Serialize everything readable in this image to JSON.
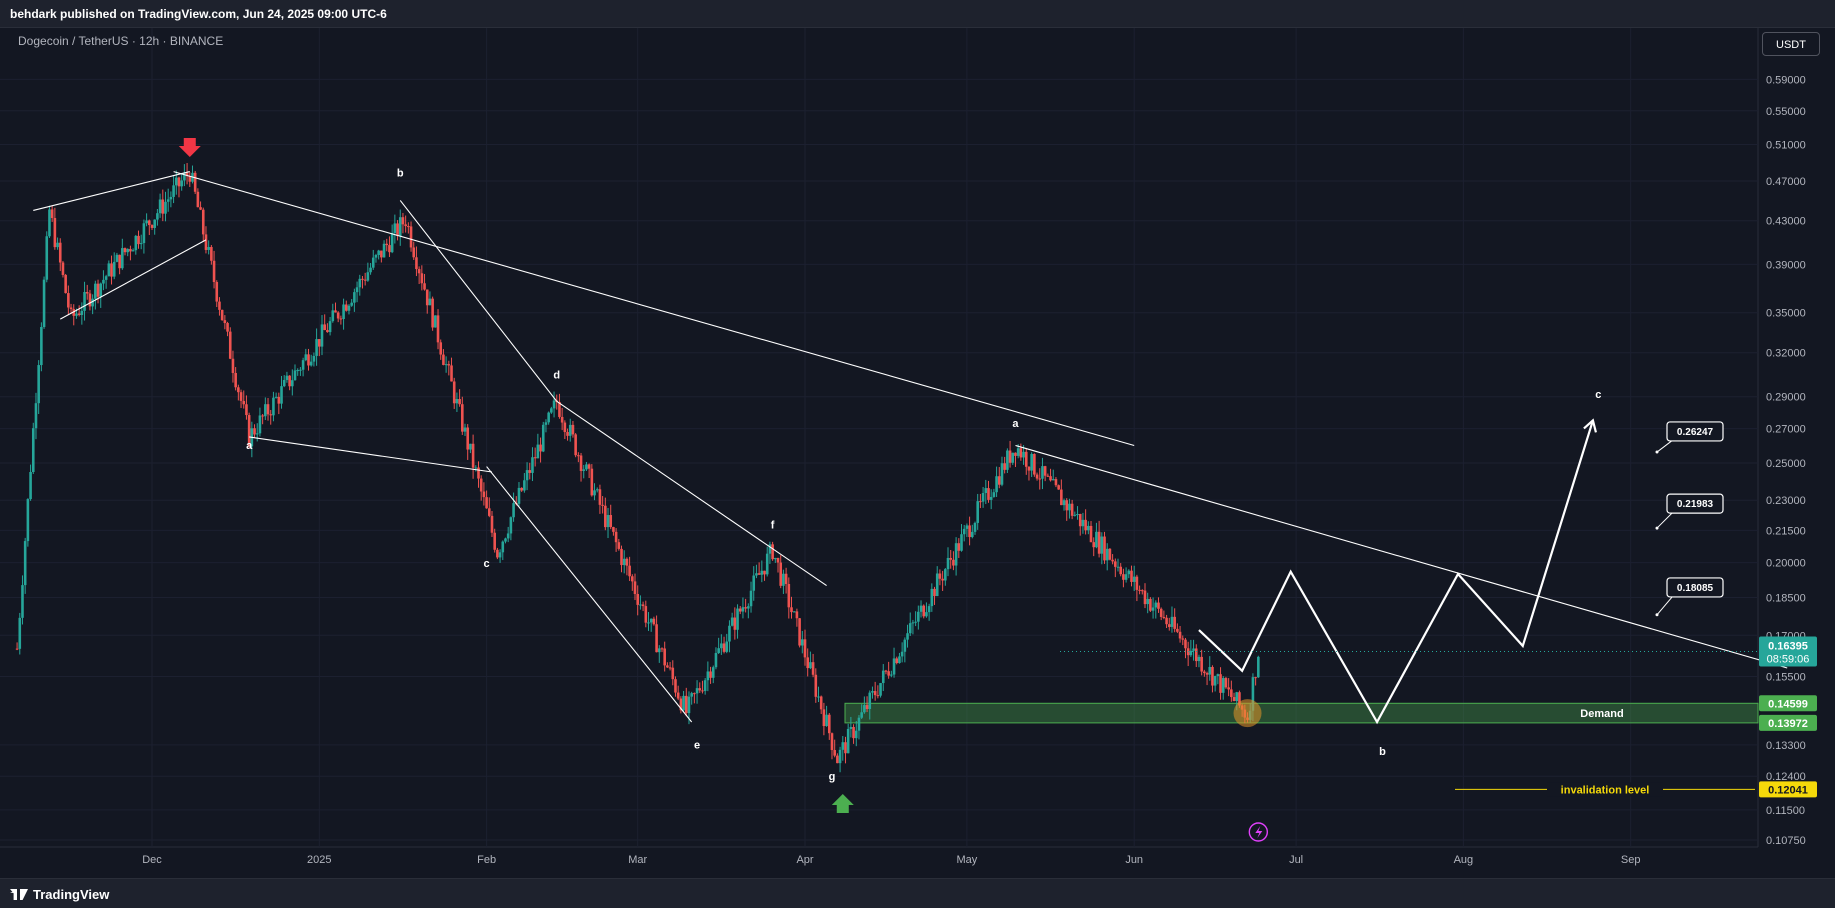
{
  "header": {
    "publisher": "behdark published on TradingView.com, Jun 24, 2025 09:00 UTC-6"
  },
  "symbol_label": "Dogecoin / TetherUS · 12h · BINANCE",
  "currency_button": "USDT",
  "footer": {
    "brand": "TradingView"
  },
  "chart_data": {
    "type": "candlestick",
    "x_labels": [
      "Dec",
      "2025",
      "Feb",
      "Mar",
      "Apr",
      "May",
      "Jun",
      "Jul",
      "Aug",
      "Sep"
    ],
    "y_ticks": [
      "0.59000",
      "0.55000",
      "0.51000",
      "0.47000",
      "0.43000",
      "0.39000",
      "0.35000",
      "0.32000",
      "0.29000",
      "0.27000",
      "0.25000",
      "0.23000",
      "0.21500",
      "0.20000",
      "0.18500",
      "0.17000",
      "0.15500",
      "0.13300",
      "0.12400",
      "0.11500",
      "0.10750"
    ],
    "y_scale": "log",
    "ylim": [
      0.104,
      0.62
    ],
    "price_labels": {
      "current": "0.16395",
      "countdown": "08:59:06",
      "demand_top": "0.14599",
      "demand_bottom": "0.13972",
      "invalidation": "0.12041"
    },
    "targets": [
      "0.26247",
      "0.21983",
      "0.18085"
    ],
    "zone_label": "Demand",
    "invalidation_label": "invalidation level",
    "wave_labels": [
      "a",
      "b",
      "c",
      "d",
      "e",
      "f",
      "g",
      "a",
      "b",
      "c"
    ],
    "colors": {
      "up": "#26a69a",
      "down": "#ef5350",
      "demand": "#4caf50",
      "invalidation": "#f5d90a",
      "background": "#131722"
    },
    "key_prices": [
      {
        "date": "2024-11-12",
        "price": 0.44
      },
      {
        "date": "2024-11-16",
        "price": 0.345
      },
      {
        "date": "2024-12-08",
        "price": 0.48
      },
      {
        "date": "2024-12-19",
        "price": 0.265
      },
      {
        "date": "2025-01-17",
        "price": 0.432
      },
      {
        "date": "2025-02-03",
        "price": 0.205
      },
      {
        "date": "2025-02-14",
        "price": 0.287
      },
      {
        "date": "2025-03-10",
        "price": 0.143
      },
      {
        "date": "2025-03-26",
        "price": 0.206
      },
      {
        "date": "2025-04-07",
        "price": 0.129
      },
      {
        "date": "2025-05-10",
        "price": 0.26
      },
      {
        "date": "2025-06-22",
        "price": 0.142
      },
      {
        "date": "2025-06-24",
        "price": 0.164
      }
    ]
  }
}
